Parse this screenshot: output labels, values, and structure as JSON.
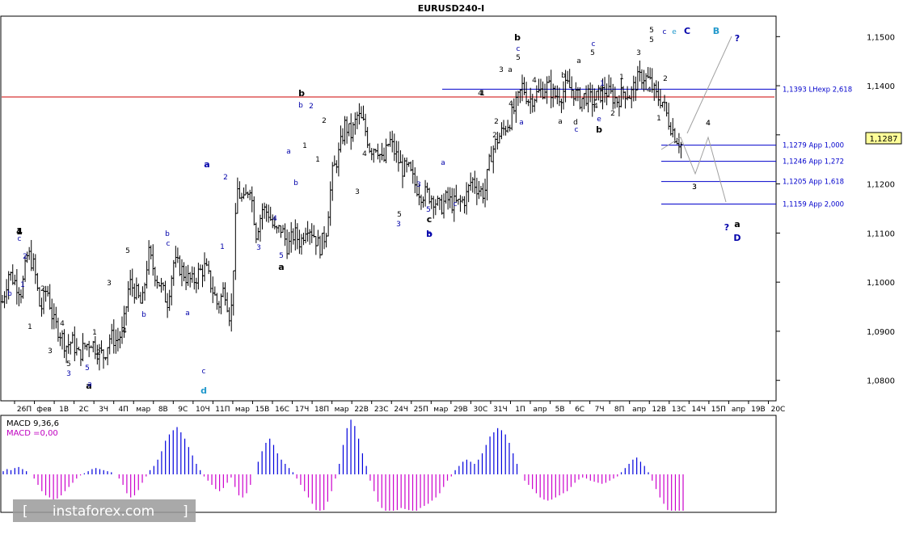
{
  "title": "EURUSD240-I",
  "chart_data": {
    "type": "candlestick",
    "symbol": "EURUSD240-I",
    "ylim": [
      1.076,
      1.154
    ],
    "y_ticks": [
      "1,1500",
      "1,1400",
      "1,1300",
      "1,1200",
      "1,1100",
      "1,1000",
      "1,0900",
      "1,0800"
    ],
    "y_tick_values": [
      1.15,
      1.14,
      1.13,
      1.12,
      1.11,
      1.1,
      1.09,
      1.08
    ],
    "current_price": {
      "label": "1,1287",
      "value": 1.1287
    },
    "x_ticks": [
      "26П",
      "фев",
      "1В",
      "2С",
      "3Ч",
      "4П",
      "мар",
      "8В",
      "9С",
      "10Ч",
      "11П",
      "мар",
      "15В",
      "16С",
      "17Ч",
      "18П",
      "мар",
      "22В",
      "23С",
      "24Ч",
      "25П",
      "мар",
      "29В",
      "30С",
      "31Ч",
      "1П",
      "апр",
      "5В",
      "6С",
      "7Ч",
      "8П",
      "апр",
      "12В",
      "13С",
      "14Ч",
      "15П",
      "апр",
      "19В",
      "20С"
    ],
    "price_levels": [
      {
        "label": "1,1393 LHexp 2,618",
        "value": 1.1393,
        "style": "blue"
      },
      {
        "label": "1,1279 App 1,000",
        "value": 1.1279,
        "style": "blue"
      },
      {
        "label": "1,1246 App 1,272",
        "value": 1.1246,
        "style": "blue"
      },
      {
        "label": "1,1205 App 1,618",
        "value": 1.1205,
        "style": "blue"
      },
      {
        "label": "1,1159 App 2,000",
        "value": 1.1159,
        "style": "blue"
      }
    ],
    "red_line": {
      "value": 1.1377
    },
    "close_path": [
      1.096,
      1.102,
      1.1,
      1.098,
      1.106,
      1.103,
      1.094,
      1.099,
      1.092,
      1.09,
      1.087,
      1.088,
      1.085,
      1.087,
      1.088,
      1.086,
      1.085,
      1.089,
      1.088,
      1.09,
      1.1,
      1.098,
      1.095,
      1.106,
      1.102,
      1.099,
      1.096,
      1.104,
      1.103,
      1.101,
      1.1,
      1.102,
      1.103,
      1.099,
      1.095,
      1.099,
      1.092,
      1.119,
      1.116,
      1.12,
      1.11,
      1.115,
      1.114,
      1.11,
      1.111,
      1.107,
      1.11,
      1.108,
      1.112,
      1.11,
      1.107,
      1.11,
      1.122,
      1.126,
      1.132,
      1.13,
      1.134,
      1.132,
      1.127,
      1.128,
      1.124,
      1.129,
      1.126,
      1.123,
      1.123,
      1.12,
      1.118,
      1.118,
      1.117,
      1.115,
      1.117,
      1.116,
      1.116,
      1.117,
      1.121,
      1.119,
      1.118,
      1.126,
      1.129,
      1.131,
      1.133,
      1.136,
      1.14,
      1.137,
      1.138,
      1.139,
      1.14,
      1.138,
      1.138,
      1.14,
      1.139,
      1.137,
      1.138,
      1.137,
      1.138,
      1.139,
      1.138,
      1.137,
      1.139,
      1.138,
      1.141,
      1.142,
      1.141,
      1.138,
      1.137,
      1.133,
      1.13,
      1.128
    ],
    "macd": {
      "label": "MACD 9,36,6",
      "label2": "MACD =0,00",
      "values": [
        3,
        5,
        4,
        6,
        7,
        5,
        3,
        0,
        -4,
        -10,
        -16,
        -20,
        -22,
        -24,
        -23,
        -20,
        -16,
        -12,
        -8,
        -4,
        -1,
        1,
        3,
        5,
        6,
        5,
        4,
        3,
        2,
        0,
        -4,
        -10,
        -18,
        -22,
        -20,
        -15,
        -8,
        -2,
        4,
        8,
        14,
        22,
        32,
        38,
        42,
        45,
        40,
        34,
        26,
        18,
        10,
        4,
        -2,
        -6,
        -10,
        -14,
        -16,
        -13,
        -8,
        -3,
        -12,
        -20,
        -22,
        -18,
        -10,
        0,
        12,
        22,
        30,
        34,
        28,
        20,
        14,
        10,
        6,
        2,
        -4,
        -10,
        -16,
        -22,
        -28,
        -34,
        -38,
        -34,
        -26,
        -16,
        -4,
        10,
        28,
        44,
        52,
        46,
        34,
        20,
        8,
        -6,
        -16,
        -26,
        -32,
        -36,
        -38,
        -36,
        -34,
        -32,
        -33,
        -34,
        -36,
        -35,
        -32,
        -30,
        -28,
        -25,
        -22,
        -18,
        -12,
        -6,
        -2,
        4,
        8,
        12,
        14,
        12,
        10,
        14,
        20,
        28,
        36,
        40,
        44,
        42,
        38,
        30,
        20,
        10,
        0,
        -6,
        -10,
        -14,
        -18,
        -22,
        -24,
        -25,
        -24,
        -22,
        -20,
        -18,
        -16,
        -12,
        -8,
        -5,
        -3,
        -4,
        -6,
        -7,
        -8,
        -9,
        -8,
        -6,
        -4,
        -2,
        2,
        6,
        10,
        14,
        16,
        12,
        8,
        2,
        -6,
        -14,
        -22,
        -28,
        -34,
        -38,
        -40,
        -42,
        -40
      ]
    },
    "wave_labels": [
      "4",
      "c",
      "2",
      "b",
      "1",
      "1",
      "2",
      "3",
      "4",
      "5",
      "3",
      "5",
      "a",
      "1",
      "2",
      "a",
      "3",
      "b",
      "4",
      "c",
      "a",
      "5",
      "b",
      "1",
      "2",
      "a",
      "3",
      "4",
      "5",
      "c",
      "d",
      "b",
      "b",
      "a",
      "2",
      "1",
      "3",
      "4",
      "5",
      "a",
      "c",
      "1",
      "2",
      "1",
      "2",
      "3",
      "4",
      "5",
      "b",
      "3",
      "5",
      "3",
      "5",
      "c",
      "b",
      "a",
      "b",
      "1",
      "2",
      "3",
      "a",
      "c",
      "5",
      "4",
      "a",
      "1",
      "b",
      "c",
      "e",
      "2",
      "3",
      "4",
      "5",
      "c",
      "e",
      "C",
      "B",
      "?",
      "3",
      "4",
      "?",
      "a",
      "D",
      "1",
      "a",
      "4",
      "1",
      "2",
      "b",
      "1",
      "4",
      "5",
      "c",
      "d",
      "a",
      "4",
      "1"
    ]
  },
  "watermark": "instaforex.com",
  "macd_label": "MACD 9,36,6",
  "macd_value_label": "MACD =0,00"
}
